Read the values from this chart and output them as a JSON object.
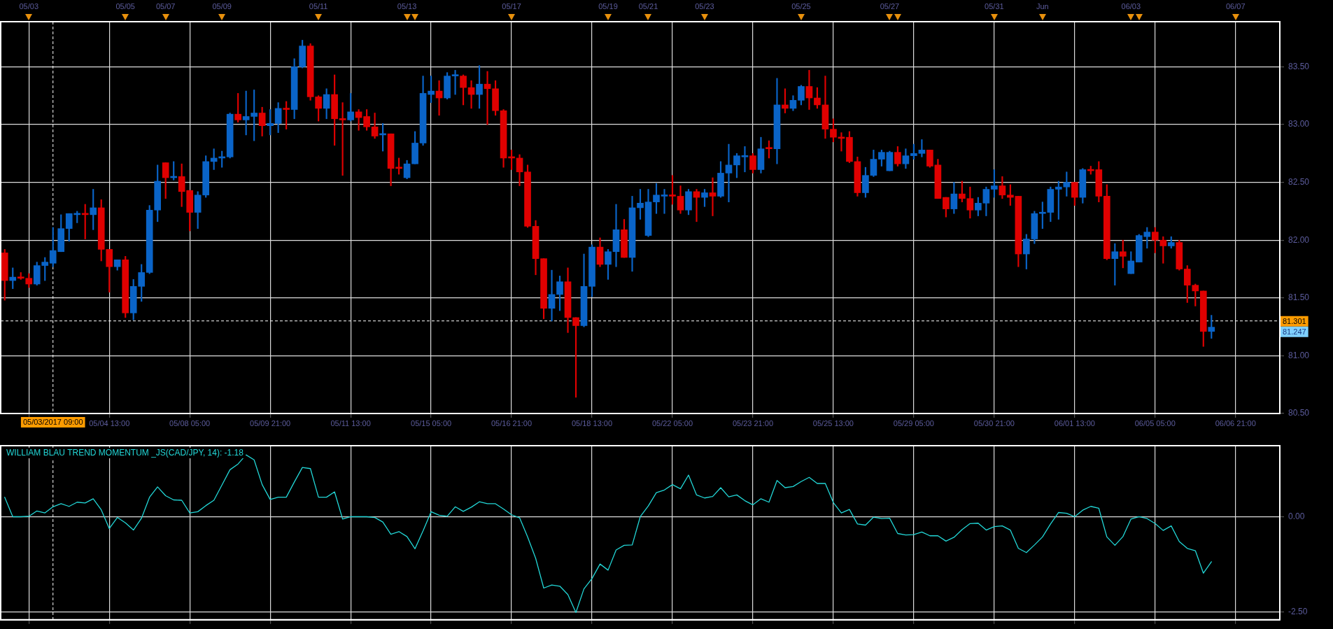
{
  "chart_data": [
    {
      "type": "candlestick",
      "categories": [
        null,
        null,
        null,
        null,
        null,
        null,
        "05/03/2017 09:00",
        null,
        null,
        null,
        null,
        null,
        null,
        "05/04 13:00",
        null,
        null,
        null,
        null,
        null,
        null,
        null,
        null,
        null,
        "05/08 05:00",
        null,
        null,
        null,
        null,
        null,
        null,
        null,
        null,
        null,
        "05/09 21:00",
        null,
        null,
        null,
        null,
        null,
        null,
        null,
        null,
        null,
        "05/11 13:00",
        null,
        null,
        null,
        null,
        null,
        null,
        null,
        null,
        null,
        "05/15 05:00",
        null,
        null,
        null,
        null,
        null,
        null,
        null,
        null,
        null,
        "05/16 21:00",
        null,
        null,
        null,
        null,
        null,
        null,
        null,
        null,
        null,
        "05/18 13:00",
        null,
        null,
        null,
        null,
        null,
        null,
        null,
        null,
        null,
        "05/22 05:00",
        null,
        null,
        null,
        null,
        null,
        null,
        null,
        null,
        null,
        "05/23 21:00",
        null,
        null,
        null,
        null,
        null,
        null,
        null,
        null,
        null,
        "05/25 13:00",
        null,
        null,
        null,
        null,
        null,
        null,
        null,
        null,
        null,
        "05/29 05:00",
        null,
        null,
        null,
        null,
        null,
        null,
        null,
        null,
        null,
        "05/30 21:00",
        null,
        null,
        null,
        null,
        null,
        null,
        null,
        null,
        null,
        "06/01 13:00",
        null,
        null,
        null,
        null,
        null,
        null,
        null,
        null,
        null,
        "06/05 05:00",
        null,
        null,
        null,
        null,
        null,
        null,
        null,
        null,
        null,
        "06/06 21:00",
        null,
        null,
        null,
        null,
        null
      ],
      "ohlc": [
        [
          81.89,
          81.92,
          81.48,
          81.65
        ],
        [
          81.65,
          81.76,
          81.58,
          81.68
        ],
        [
          81.68,
          81.72,
          81.66,
          81.67
        ],
        [
          81.67,
          81.71,
          81.59,
          81.62
        ],
        [
          81.62,
          81.81,
          81.61,
          81.78
        ],
        [
          81.78,
          81.85,
          81.65,
          81.81
        ],
        [
          81.8,
          82.11,
          81.77,
          81.91
        ],
        [
          81.9,
          82.22,
          81.9,
          82.1
        ],
        [
          82.1,
          82.23,
          81.99,
          82.23
        ],
        [
          82.22,
          82.25,
          82.15,
          82.23
        ],
        [
          82.23,
          82.31,
          82.01,
          82.22
        ],
        [
          82.22,
          82.44,
          82.09,
          82.28
        ],
        [
          82.28,
          82.35,
          81.82,
          81.92
        ],
        [
          81.92,
          81.92,
          81.55,
          81.77
        ],
        [
          81.77,
          81.83,
          81.74,
          81.83
        ],
        [
          81.83,
          81.86,
          81.33,
          81.37
        ],
        [
          81.37,
          81.66,
          81.31,
          81.6
        ],
        [
          81.6,
          81.79,
          81.47,
          81.72
        ],
        [
          81.72,
          82.3,
          81.71,
          82.26
        ],
        [
          82.26,
          82.65,
          82.16,
          82.51
        ],
        [
          82.67,
          82.67,
          82.36,
          82.54
        ],
        [
          82.54,
          82.68,
          82.52,
          82.55
        ],
        [
          82.55,
          82.66,
          82.29,
          82.42
        ],
        [
          82.43,
          82.43,
          82.08,
          82.24
        ],
        [
          82.24,
          82.42,
          82.1,
          82.39
        ],
        [
          82.39,
          82.73,
          82.37,
          82.68
        ],
        [
          82.68,
          82.79,
          82.61,
          82.71
        ],
        [
          82.71,
          82.77,
          82.63,
          82.72
        ],
        [
          82.72,
          83.1,
          82.71,
          83.09
        ],
        [
          83.09,
          83.27,
          83.02,
          83.04
        ],
        [
          83.04,
          83.29,
          82.91,
          83.07
        ],
        [
          83.07,
          83.3,
          82.86,
          83.1
        ],
        [
          83.1,
          83.15,
          82.9,
          82.99
        ],
        [
          82.99,
          83.13,
          82.91,
          83.01
        ],
        [
          83.01,
          83.19,
          82.93,
          83.14
        ],
        [
          83.14,
          83.2,
          82.96,
          83.13
        ],
        [
          83.13,
          83.57,
          83.05,
          83.5
        ],
        [
          83.5,
          83.73,
          83.49,
          83.68
        ],
        [
          83.68,
          83.7,
          83.21,
          83.24
        ],
        [
          83.24,
          83.25,
          83.03,
          83.14
        ],
        [
          83.14,
          83.31,
          83.05,
          83.26
        ],
        [
          83.26,
          83.43,
          82.82,
          83.05
        ],
        [
          83.05,
          83.19,
          82.56,
          83.04
        ],
        [
          83.04,
          83.27,
          83.03,
          83.11
        ],
        [
          83.11,
          83.13,
          82.95,
          83.06
        ],
        [
          83.07,
          83.13,
          82.95,
          82.98
        ],
        [
          82.98,
          83.1,
          82.88,
          82.9
        ],
        [
          82.91,
          83.01,
          82.77,
          82.92
        ],
        [
          82.92,
          82.92,
          82.47,
          82.62
        ],
        [
          82.63,
          82.71,
          82.57,
          82.62
        ],
        [
          82.54,
          82.69,
          82.53,
          82.66
        ],
        [
          82.66,
          82.94,
          82.66,
          82.84
        ],
        [
          82.84,
          83.42,
          82.82,
          83.27
        ],
        [
          83.26,
          83.42,
          83.19,
          83.29
        ],
        [
          83.29,
          83.38,
          83.08,
          83.23
        ],
        [
          83.23,
          83.45,
          83.22,
          83.42
        ],
        [
          83.42,
          83.47,
          83.26,
          83.43
        ],
        [
          83.42,
          83.43,
          83.17,
          83.32
        ],
        [
          83.32,
          83.38,
          83.14,
          83.26
        ],
        [
          83.26,
          83.51,
          83.14,
          83.35
        ],
        [
          83.35,
          83.46,
          83.0,
          83.31
        ],
        [
          83.31,
          83.38,
          83.08,
          83.12
        ],
        [
          83.12,
          83.13,
          82.63,
          82.71
        ],
        [
          82.72,
          82.78,
          82.61,
          82.71
        ],
        [
          82.71,
          82.74,
          82.47,
          82.59
        ],
        [
          82.59,
          82.65,
          82.11,
          82.12
        ],
        [
          82.12,
          82.17,
          81.7,
          81.84
        ],
        [
          81.84,
          81.84,
          81.32,
          81.41
        ],
        [
          81.41,
          81.74,
          81.3,
          81.53
        ],
        [
          81.53,
          81.69,
          81.39,
          81.64
        ],
        [
          81.64,
          81.76,
          81.2,
          81.33
        ],
        [
          81.33,
          81.33,
          80.64,
          81.26
        ],
        [
          81.26,
          81.88,
          81.25,
          81.6
        ],
        [
          81.6,
          81.96,
          81.51,
          81.94
        ],
        [
          81.94,
          82.02,
          81.77,
          81.79
        ],
        [
          81.79,
          81.92,
          81.66,
          81.9
        ],
        [
          81.9,
          82.31,
          81.77,
          82.09
        ],
        [
          82.09,
          82.18,
          81.85,
          81.85
        ],
        [
          81.85,
          82.38,
          81.73,
          82.28
        ],
        [
          82.28,
          82.44,
          82.18,
          82.32
        ],
        [
          82.04,
          82.44,
          82.03,
          82.33
        ],
        [
          82.33,
          82.49,
          82.23,
          82.39
        ],
        [
          82.38,
          82.44,
          82.23,
          82.39
        ],
        [
          82.39,
          82.56,
          82.31,
          82.38
        ],
        [
          82.38,
          82.47,
          82.23,
          82.26
        ],
        [
          82.26,
          82.44,
          82.22,
          82.42
        ],
        [
          82.42,
          82.44,
          82.16,
          82.37
        ],
        [
          82.37,
          82.44,
          82.29,
          82.41
        ],
        [
          82.41,
          82.54,
          82.21,
          82.38
        ],
        [
          82.38,
          82.68,
          82.37,
          82.58
        ],
        [
          82.58,
          82.83,
          82.33,
          82.65
        ],
        [
          82.65,
          82.75,
          82.54,
          82.73
        ],
        [
          82.72,
          82.81,
          82.59,
          82.73
        ],
        [
          82.73,
          82.75,
          82.58,
          82.61
        ],
        [
          82.61,
          82.89,
          82.58,
          82.79
        ],
        [
          82.8,
          82.86,
          82.71,
          82.79
        ],
        [
          82.79,
          83.4,
          82.66,
          83.17
        ],
        [
          83.17,
          83.31,
          83.1,
          83.14
        ],
        [
          83.14,
          83.25,
          83.12,
          83.21
        ],
        [
          83.21,
          83.34,
          83.17,
          83.33
        ],
        [
          83.33,
          83.47,
          83.13,
          83.23
        ],
        [
          83.23,
          83.32,
          83.14,
          83.17
        ],
        [
          83.17,
          83.42,
          82.88,
          82.96
        ],
        [
          82.96,
          83.05,
          82.85,
          82.89
        ],
        [
          82.89,
          82.93,
          82.77,
          82.88
        ],
        [
          82.89,
          82.94,
          82.67,
          82.68
        ],
        [
          82.68,
          82.72,
          82.38,
          82.41
        ],
        [
          82.41,
          82.63,
          82.37,
          82.56
        ],
        [
          82.56,
          82.78,
          82.55,
          82.7
        ],
        [
          82.7,
          82.78,
          82.64,
          82.76
        ],
        [
          82.6,
          82.77,
          82.6,
          82.76
        ],
        [
          82.76,
          82.81,
          82.64,
          82.66
        ],
        [
          82.66,
          82.79,
          82.62,
          82.73
        ],
        [
          82.73,
          82.83,
          82.7,
          82.75
        ],
        [
          82.75,
          82.87,
          82.72,
          82.78
        ],
        [
          82.78,
          82.78,
          82.63,
          82.64
        ],
        [
          82.65,
          82.7,
          82.36,
          82.36
        ],
        [
          82.37,
          82.37,
          82.2,
          82.27
        ],
        [
          82.27,
          82.5,
          82.23,
          82.4
        ],
        [
          82.4,
          82.51,
          82.33,
          82.36
        ],
        [
          82.36,
          82.46,
          82.19,
          82.26
        ],
        [
          82.26,
          82.37,
          82.21,
          82.32
        ],
        [
          82.32,
          82.46,
          82.21,
          82.44
        ],
        [
          82.44,
          82.61,
          82.37,
          82.47
        ],
        [
          82.47,
          82.55,
          82.36,
          82.39
        ],
        [
          82.39,
          82.48,
          82.3,
          82.37
        ],
        [
          82.38,
          82.38,
          81.77,
          81.88
        ],
        [
          81.88,
          82.05,
          81.75,
          82.01
        ],
        [
          82.01,
          82.25,
          81.97,
          82.23
        ],
        [
          82.23,
          82.33,
          82.1,
          82.24
        ],
        [
          82.24,
          82.46,
          82.16,
          82.44
        ],
        [
          82.44,
          82.51,
          82.18,
          82.46
        ],
        [
          82.46,
          82.59,
          82.38,
          82.5
        ],
        [
          82.5,
          82.5,
          82.3,
          82.37
        ],
        [
          82.37,
          82.62,
          82.32,
          82.61
        ],
        [
          82.61,
          82.64,
          82.57,
          82.6
        ],
        [
          82.61,
          82.68,
          82.33,
          82.38
        ],
        [
          82.38,
          82.48,
          81.83,
          81.84
        ],
        [
          81.84,
          81.97,
          81.61,
          81.9
        ],
        [
          81.9,
          82.0,
          81.76,
          81.86
        ],
        [
          81.71,
          81.9,
          81.71,
          81.82
        ],
        [
          81.81,
          82.05,
          81.81,
          82.04
        ],
        [
          82.03,
          82.11,
          81.93,
          82.07
        ],
        [
          82.07,
          82.11,
          81.89,
          82.0
        ],
        [
          82.0,
          82.03,
          81.8,
          81.95
        ],
        [
          81.95,
          82.03,
          81.93,
          81.98
        ],
        [
          81.98,
          82.0,
          81.74,
          81.75
        ],
        [
          81.75,
          81.78,
          81.46,
          81.61
        ],
        [
          81.61,
          81.62,
          81.43,
          81.56
        ],
        [
          81.56,
          81.56,
          81.08,
          81.21
        ],
        [
          81.21,
          81.35,
          81.15,
          81.247
        ],
        null,
        null,
        null,
        null,
        null,
        null,
        null,
        null
      ],
      "colors": [
        "#e00000",
        "#0a64c8",
        "#e00000",
        "#e00000",
        "#0a64c8",
        "#0a64c8",
        "#0a64c8",
        "#0a64c8",
        "#0a64c8",
        "#0a64c8",
        "#e00000",
        "#0a64c8",
        "#e00000",
        "#e00000",
        "#0a64c8",
        "#e00000",
        "#0a64c8",
        "#0a64c8",
        "#0a64c8",
        "#0a64c8",
        "#e00000",
        "#0a64c8",
        "#e00000",
        "#e00000",
        "#0a64c8",
        "#0a64c8",
        "#0a64c8",
        "#0a64c8",
        "#0a64c8",
        "#e00000",
        "#0a64c8",
        "#0a64c8",
        "#e00000",
        "#0a64c8",
        "#0a64c8",
        "#e00000",
        "#0a64c8",
        "#0a64c8",
        "#e00000",
        "#e00000",
        "#0a64c8",
        "#e00000",
        "#e00000",
        "#0a64c8",
        "#e00000",
        "#e00000",
        "#e00000",
        "#0a64c8",
        "#e00000",
        "#e00000",
        "#0a64c8",
        "#0a64c8",
        "#0a64c8",
        "#0a64c8",
        "#e00000",
        "#0a64c8",
        "#0a64c8",
        "#e00000",
        "#e00000",
        "#0a64c8",
        "#e00000",
        "#e00000",
        "#e00000",
        "#e00000",
        "#e00000",
        "#e00000",
        "#e00000",
        "#e00000",
        "#0a64c8",
        "#0a64c8",
        "#e00000",
        "#e00000",
        "#0a64c8",
        "#0a64c8",
        "#e00000",
        "#0a64c8",
        "#0a64c8",
        "#e00000",
        "#0a64c8",
        "#0a64c8",
        "#0a64c8",
        "#0a64c8",
        "#0a64c8",
        "#e00000",
        "#e00000",
        "#0a64c8",
        "#e00000",
        "#0a64c8",
        "#e00000",
        "#0a64c8",
        "#0a64c8",
        "#0a64c8",
        "#0a64c8",
        "#e00000",
        "#0a64c8",
        "#e00000",
        "#0a64c8",
        "#e00000",
        "#0a64c8",
        "#0a64c8",
        "#e00000",
        "#e00000",
        "#e00000",
        "#e00000",
        "#e00000",
        "#e00000",
        "#e00000",
        "#0a64c8",
        "#0a64c8",
        "#0a64c8",
        "#0a64c8",
        "#e00000",
        "#0a64c8",
        "#0a64c8",
        "#0a64c8",
        "#e00000",
        "#e00000",
        "#e00000",
        "#0a64c8",
        "#e00000",
        "#e00000",
        "#0a64c8",
        "#0a64c8",
        "#0a64c8",
        "#e00000",
        "#e00000",
        "#e00000",
        "#0a64c8",
        "#0a64c8",
        "#0a64c8",
        "#0a64c8",
        "#0a64c8",
        "#0a64c8",
        "#e00000",
        "#0a64c8",
        "#e00000",
        "#e00000",
        "#e00000",
        "#0a64c8",
        "#e00000",
        "#0a64c8",
        "#0a64c8",
        "#0a64c8",
        "#e00000",
        "#e00000",
        "#0a64c8",
        "#e00000",
        "#e00000",
        "#e00000",
        "#e00000",
        "#0a64c8",
        null,
        null,
        null,
        null,
        null,
        null,
        null,
        null
      ],
      "ylim": [
        80.5,
        83.89
      ],
      "yticks": [
        {
          "value": 80.5,
          "label": "80.50"
        },
        {
          "value": 81,
          "label": "81.00"
        },
        {
          "value": 81.5,
          "label": "81.50"
        },
        {
          "value": 82,
          "label": "82.00"
        },
        {
          "value": 82.5,
          "label": "82.50"
        },
        {
          "value": 83,
          "label": "83.00"
        },
        {
          "value": 83.5,
          "label": "83.50"
        }
      ],
      "grid": true,
      "ref_lines": [
        {
          "axis": "y",
          "value": 81.301,
          "label": "81.301",
          "color": "#ffffff",
          "line_style": "dashed"
        },
        {
          "axis": "x",
          "value": "05/03/2017 09:00",
          "color": "#ffffff",
          "line_style": "dashed"
        }
      ],
      "annotations": [
        "05/03",
        "05/05",
        "05/07",
        "05/09",
        "05/11",
        "05/13",
        "05/17",
        "05/19",
        "05/21",
        "05/23",
        "05/25",
        "05/27",
        "05/31",
        "Jun",
        "06/03",
        "06/07",
        "81.247"
      ]
    },
    {
      "type": "line",
      "title": "WILLIAM BLAU TREND MOMENTUM _JS(CAD/JPY, 14): -1.18",
      "categories": [
        null,
        null,
        null,
        null,
        null,
        null,
        "05/03/2017 09:00",
        null,
        null,
        null,
        null,
        null,
        null,
        "05/04 13:00",
        null,
        null,
        null,
        null,
        null,
        null,
        null,
        null,
        null,
        "05/08 05:00",
        null,
        null,
        null,
        null,
        null,
        null,
        null,
        null,
        null,
        "05/09 21:00",
        null,
        null,
        null,
        null,
        null,
        null,
        null,
        null,
        null,
        "05/11 13:00",
        null,
        null,
        null,
        null,
        null,
        null,
        null,
        null,
        null,
        "05/15 05:00",
        null,
        null,
        null,
        null,
        null,
        null,
        null,
        null,
        null,
        "05/16 21:00",
        null,
        null,
        null,
        null,
        null,
        null,
        null,
        null,
        null,
        "05/18 13:00",
        null,
        null,
        null,
        null,
        null,
        null,
        null,
        null,
        null,
        "05/22 05:00",
        null,
        null,
        null,
        null,
        null,
        null,
        null,
        null,
        null,
        "05/23 21:00",
        null,
        null,
        null,
        null,
        null,
        null,
        null,
        null,
        null,
        "05/25 13:00",
        null,
        null,
        null,
        null,
        null,
        null,
        null,
        null,
        null,
        "05/29 05:00",
        null,
        null,
        null,
        null,
        null,
        null,
        null,
        null,
        null,
        "05/30 21:00",
        null,
        null,
        null,
        null,
        null,
        null,
        null,
        null,
        null,
        "06/01 13:00",
        null,
        null,
        null,
        null,
        null,
        null,
        null,
        null,
        null,
        "06/05 05:00",
        null,
        null,
        null,
        null,
        null,
        null,
        null,
        null,
        null,
        "06/06 21:00",
        null,
        null,
        null,
        null,
        null
      ],
      "series": [
        {
          "color": "#22d6d6",
          "values": [
            0.51,
            0,
            0,
            0.01,
            0.15,
            0.1,
            0.26,
            0.34,
            0.27,
            0.38,
            0.36,
            0.47,
            0.18,
            -0.31,
            -0.02,
            -0.16,
            -0.35,
            -0.04,
            0.51,
            0.78,
            0.55,
            0.44,
            0.43,
            0.1,
            0.13,
            0.29,
            0.43,
            0.83,
            1.23,
            1.38,
            1.62,
            1.49,
            0.84,
            0.45,
            0.51,
            0.51,
            0.91,
            1.29,
            1.26,
            0.51,
            0.51,
            0.65,
            -0.06,
            0,
            0,
            0,
            -0.02,
            -0.14,
            -0.46,
            -0.39,
            -0.52,
            -0.84,
            -0.37,
            0.13,
            0.04,
            0.01,
            0.26,
            0.14,
            0.25,
            0.39,
            0.34,
            0.34,
            0.2,
            0.05,
            -0.03,
            -0.53,
            -1.09,
            -1.87,
            -1.79,
            -1.82,
            -2.04,
            -2.51,
            -1.89,
            -1.62,
            -1.24,
            -1.4,
            -0.87,
            -0.75,
            -0.74,
            0,
            0.28,
            0.63,
            0.7,
            0.84,
            0.73,
            1.09,
            0.57,
            0.49,
            0.53,
            0.76,
            0.52,
            0.57,
            0.42,
            0.31,
            0.47,
            0.38,
            0.95,
            0.76,
            0.79,
            0.92,
            1.03,
            0.87,
            0.87,
            0.37,
            0.1,
            0.19,
            -0.19,
            -0.22,
            -0.01,
            -0.05,
            -0.04,
            -0.44,
            -0.48,
            -0.47,
            -0.4,
            -0.5,
            -0.5,
            -0.64,
            -0.54,
            -0.34,
            -0.18,
            -0.17,
            -0.35,
            -0.26,
            -0.24,
            -0.35,
            -0.83,
            -0.94,
            -0.74,
            -0.53,
            -0.19,
            0.11,
            0.09,
            0,
            0.17,
            0.27,
            0.22,
            -0.53,
            -0.75,
            -0.52,
            -0.06,
            0,
            -0.05,
            -0.18,
            -0.36,
            -0.24,
            -0.65,
            -0.83,
            -0.89,
            -1.48,
            -1.18,
            null,
            null,
            null,
            null,
            null,
            null,
            null,
            null
          ]
        }
      ],
      "ylim": [
        -2.7,
        1.86
      ],
      "yticks": [
        {
          "value": -2.5,
          "label": "-2.50"
        },
        {
          "value": 0,
          "label": "0.00"
        }
      ],
      "grid": true,
      "tick_labels": "y",
      "ref_lines": [
        {
          "axis": "x",
          "value": "05/03/2017 09:00",
          "color": "#ffffff",
          "line_style": "dashed"
        }
      ]
    }
  ]
}
